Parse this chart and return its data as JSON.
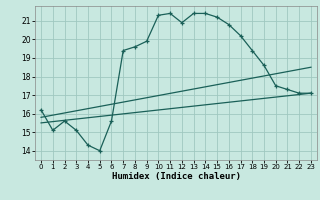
{
  "title": "",
  "xlabel": "Humidex (Indice chaleur)",
  "xlim": [
    -0.5,
    23.5
  ],
  "ylim": [
    13.5,
    21.8
  ],
  "yticks": [
    14,
    15,
    16,
    17,
    18,
    19,
    20,
    21
  ],
  "xticks": [
    0,
    1,
    2,
    3,
    4,
    5,
    6,
    7,
    8,
    9,
    10,
    11,
    12,
    13,
    14,
    15,
    16,
    17,
    18,
    19,
    20,
    21,
    22,
    23
  ],
  "bg_color": "#c8e8e0",
  "grid_color": "#a0c8c0",
  "line_color": "#1a6058",
  "lines": [
    {
      "x": [
        0,
        1,
        2,
        3,
        4,
        5,
        6,
        7,
        8,
        9,
        10,
        11,
        12,
        13,
        14,
        15,
        16,
        17,
        18,
        19,
        20,
        21,
        22,
        23
      ],
      "y": [
        16.2,
        15.1,
        15.6,
        15.1,
        14.3,
        14.0,
        15.6,
        19.4,
        19.6,
        19.9,
        21.3,
        21.4,
        20.9,
        21.4,
        21.4,
        21.2,
        20.8,
        20.2,
        19.4,
        18.6,
        17.5,
        17.3,
        17.1,
        17.1
      ],
      "marker": "+"
    },
    {
      "x": [
        0,
        23
      ],
      "y": [
        15.8,
        18.5
      ],
      "marker": null
    },
    {
      "x": [
        0,
        23
      ],
      "y": [
        15.5,
        17.1
      ],
      "marker": null
    }
  ]
}
